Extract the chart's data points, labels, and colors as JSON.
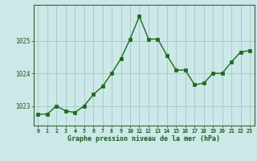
{
  "x": [
    0,
    1,
    2,
    3,
    4,
    5,
    6,
    7,
    8,
    9,
    10,
    11,
    12,
    13,
    14,
    15,
    16,
    17,
    18,
    19,
    20,
    21,
    22,
    23
  ],
  "y": [
    1022.75,
    1022.75,
    1023.0,
    1022.85,
    1022.8,
    1023.0,
    1023.35,
    1023.6,
    1024.0,
    1024.45,
    1025.05,
    1025.75,
    1025.05,
    1025.05,
    1024.55,
    1024.1,
    1024.1,
    1023.65,
    1023.7,
    1024.0,
    1024.0,
    1024.35,
    1024.65,
    1024.7
  ],
  "line_color": "#1a6b1a",
  "marker_color": "#1a6b1a",
  "bg_color": "#cce8e8",
  "grid_color": "#aacccc",
  "axis_color": "#336633",
  "label_color": "#1a5c1a",
  "xlabel": "Graphe pression niveau de la mer (hPa)",
  "yticks": [
    1023,
    1024,
    1025
  ],
  "ylim": [
    1022.4,
    1026.1
  ],
  "xlim": [
    -0.5,
    23.5
  ],
  "xticks": [
    0,
    1,
    2,
    3,
    4,
    5,
    6,
    7,
    8,
    9,
    10,
    11,
    12,
    13,
    14,
    15,
    16,
    17,
    18,
    19,
    20,
    21,
    22,
    23
  ]
}
